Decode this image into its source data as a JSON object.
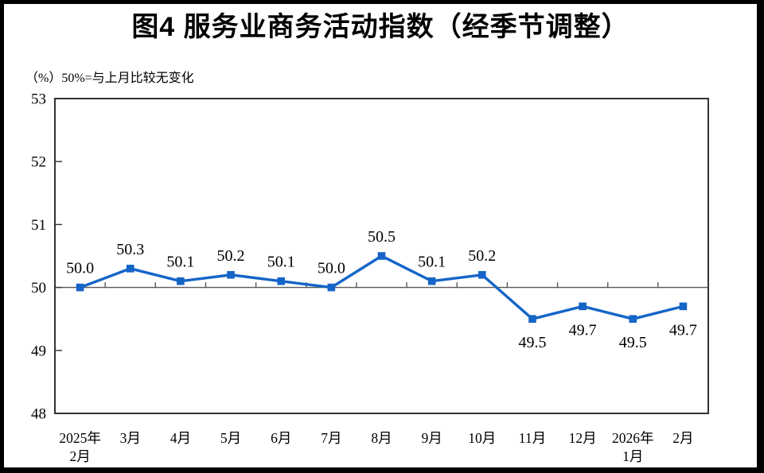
{
  "chart_data": {
    "type": "line",
    "title": "图4 服务业商务活动指数（经季节调整）",
    "subtitle": "（%）50%=与上月比较无变化",
    "series_name": "服务业商务活动指数",
    "categories": [
      [
        "2025年",
        "2月"
      ],
      [
        "3月"
      ],
      [
        "4月"
      ],
      [
        "5月"
      ],
      [
        "6月"
      ],
      [
        "7月"
      ],
      [
        "8月"
      ],
      [
        "9月"
      ],
      [
        "10月"
      ],
      [
        "11月"
      ],
      [
        "12月"
      ],
      [
        "2026年",
        "1月"
      ],
      [
        "2月"
      ]
    ],
    "values": [
      50.0,
      50.3,
      50.1,
      50.2,
      50.1,
      50.0,
      50.5,
      50.1,
      50.2,
      49.5,
      49.7,
      49.5,
      49.7
    ],
    "ylim": [
      48,
      53
    ],
    "y_ticks": [
      48,
      49,
      50,
      51,
      52,
      53
    ],
    "reference_line": 50,
    "data_label_decimals": 1,
    "grid": false,
    "legend": "none",
    "marker_shape": "square",
    "colors": {
      "line": "#1565C8",
      "marker": "#1565C8",
      "axis": "#333333",
      "reference_line": "#595959",
      "text": "#000000",
      "frame": "#000000"
    }
  }
}
